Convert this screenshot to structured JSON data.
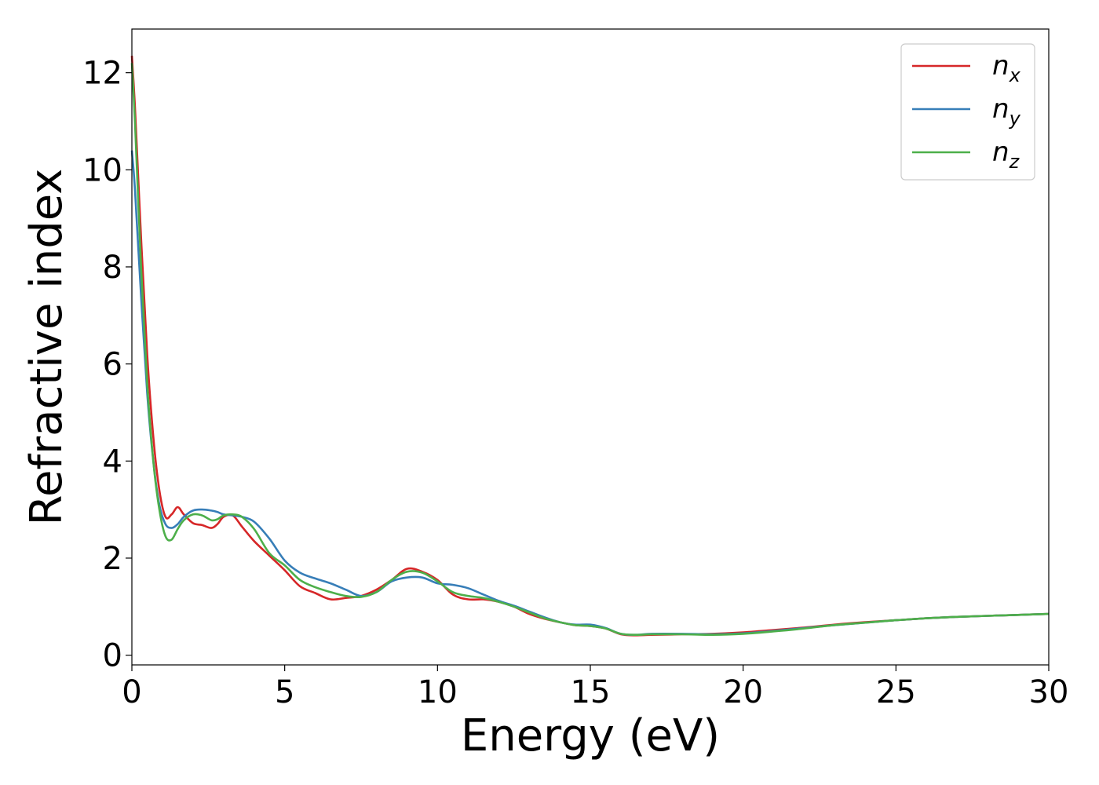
{
  "chart_data": {
    "type": "line",
    "title": "",
    "xlabel": "Energy (eV)",
    "ylabel": "Refractive index",
    "xlim": [
      0,
      30
    ],
    "ylim": [
      -0.2,
      12.9
    ],
    "xticks": [
      0,
      5,
      10,
      15,
      20,
      25,
      30
    ],
    "yticks": [
      0,
      2,
      4,
      6,
      8,
      10,
      12
    ],
    "grid": false,
    "legend_position": "top-right",
    "series": [
      {
        "name": "n",
        "subscript": "x",
        "color": "#d62728",
        "x": [
          0,
          0.1,
          0.3,
          0.5,
          0.7,
          0.9,
          1.1,
          1.3,
          1.5,
          1.7,
          2.0,
          2.3,
          2.6,
          2.8,
          3.0,
          3.3,
          3.6,
          4.0,
          4.5,
          5.0,
          5.5,
          6.0,
          6.5,
          7.0,
          7.5,
          8.0,
          8.5,
          9.0,
          9.5,
          10.0,
          10.5,
          11.0,
          11.5,
          12.0,
          12.5,
          13.0,
          13.5,
          14.0,
          14.5,
          15.0,
          15.5,
          16.0,
          16.5,
          17.0,
          18.0,
          19.0,
          20.0,
          21.0,
          22.0,
          23.0,
          24.0,
          25.0,
          26.0,
          27.0,
          28.0,
          29.0,
          30.0
        ],
        "values": [
          12.35,
          11.3,
          8.6,
          6.2,
          4.5,
          3.4,
          2.85,
          2.9,
          3.05,
          2.9,
          2.72,
          2.68,
          2.62,
          2.7,
          2.85,
          2.88,
          2.65,
          2.35,
          2.05,
          1.75,
          1.42,
          1.28,
          1.15,
          1.18,
          1.22,
          1.35,
          1.55,
          1.78,
          1.72,
          1.55,
          1.25,
          1.15,
          1.15,
          1.1,
          1.0,
          0.85,
          0.75,
          0.68,
          0.62,
          0.6,
          0.55,
          0.43,
          0.41,
          0.42,
          0.43,
          0.44,
          0.47,
          0.52,
          0.57,
          0.63,
          0.68,
          0.72,
          0.76,
          0.79,
          0.81,
          0.83,
          0.85
        ]
      },
      {
        "name": "n",
        "subscript": "y",
        "color": "#377eb8",
        "x": [
          0,
          0.1,
          0.3,
          0.5,
          0.7,
          0.9,
          1.1,
          1.3,
          1.5,
          1.7,
          2.0,
          2.3,
          2.6,
          2.8,
          3.0,
          3.3,
          3.6,
          4.0,
          4.5,
          5.0,
          5.5,
          6.0,
          6.5,
          7.0,
          7.5,
          8.0,
          8.5,
          9.0,
          9.5,
          10.0,
          10.5,
          11.0,
          11.5,
          12.0,
          12.5,
          13.0,
          13.5,
          14.0,
          14.5,
          15.0,
          15.5,
          16.0,
          16.5,
          17.0,
          18.0,
          19.0,
          20.0,
          21.0,
          22.0,
          23.0,
          24.0,
          25.0,
          26.0,
          27.0,
          28.0,
          29.0,
          30.0
        ],
        "values": [
          10.4,
          9.6,
          7.4,
          5.4,
          4.0,
          3.1,
          2.7,
          2.62,
          2.7,
          2.85,
          2.98,
          3.0,
          2.98,
          2.95,
          2.9,
          2.88,
          2.85,
          2.75,
          2.4,
          1.95,
          1.7,
          1.58,
          1.48,
          1.35,
          1.22,
          1.3,
          1.52,
          1.6,
          1.6,
          1.48,
          1.45,
          1.38,
          1.25,
          1.12,
          1.02,
          0.9,
          0.78,
          0.68,
          0.63,
          0.63,
          0.56,
          0.44,
          0.42,
          0.44,
          0.44,
          0.43,
          0.45,
          0.5,
          0.56,
          0.62,
          0.67,
          0.72,
          0.76,
          0.79,
          0.81,
          0.83,
          0.85
        ]
      },
      {
        "name": "n",
        "subscript": "z",
        "color": "#4daf4a",
        "x": [
          0,
          0.1,
          0.3,
          0.5,
          0.7,
          0.9,
          1.1,
          1.3,
          1.5,
          1.7,
          2.0,
          2.3,
          2.6,
          2.8,
          3.0,
          3.3,
          3.6,
          4.0,
          4.5,
          5.0,
          5.5,
          6.0,
          6.5,
          7.0,
          7.5,
          8.0,
          8.5,
          9.0,
          9.5,
          10.0,
          10.5,
          11.0,
          11.5,
          12.0,
          12.5,
          13.0,
          13.5,
          14.0,
          14.5,
          15.0,
          15.5,
          16.0,
          16.5,
          17.0,
          18.0,
          19.0,
          20.0,
          21.0,
          22.0,
          23.0,
          24.0,
          25.0,
          26.0,
          27.0,
          28.0,
          29.0,
          30.0
        ],
        "values": [
          12.2,
          11.0,
          8.0,
          5.6,
          4.0,
          3.0,
          2.45,
          2.38,
          2.6,
          2.78,
          2.9,
          2.88,
          2.78,
          2.8,
          2.88,
          2.9,
          2.85,
          2.6,
          2.1,
          1.85,
          1.55,
          1.4,
          1.3,
          1.22,
          1.2,
          1.3,
          1.55,
          1.72,
          1.7,
          1.52,
          1.3,
          1.22,
          1.18,
          1.1,
          1.0,
          0.88,
          0.76,
          0.68,
          0.62,
          0.6,
          0.55,
          0.44,
          0.42,
          0.43,
          0.43,
          0.42,
          0.44,
          0.49,
          0.55,
          0.62,
          0.67,
          0.72,
          0.76,
          0.79,
          0.81,
          0.83,
          0.85
        ]
      }
    ]
  }
}
